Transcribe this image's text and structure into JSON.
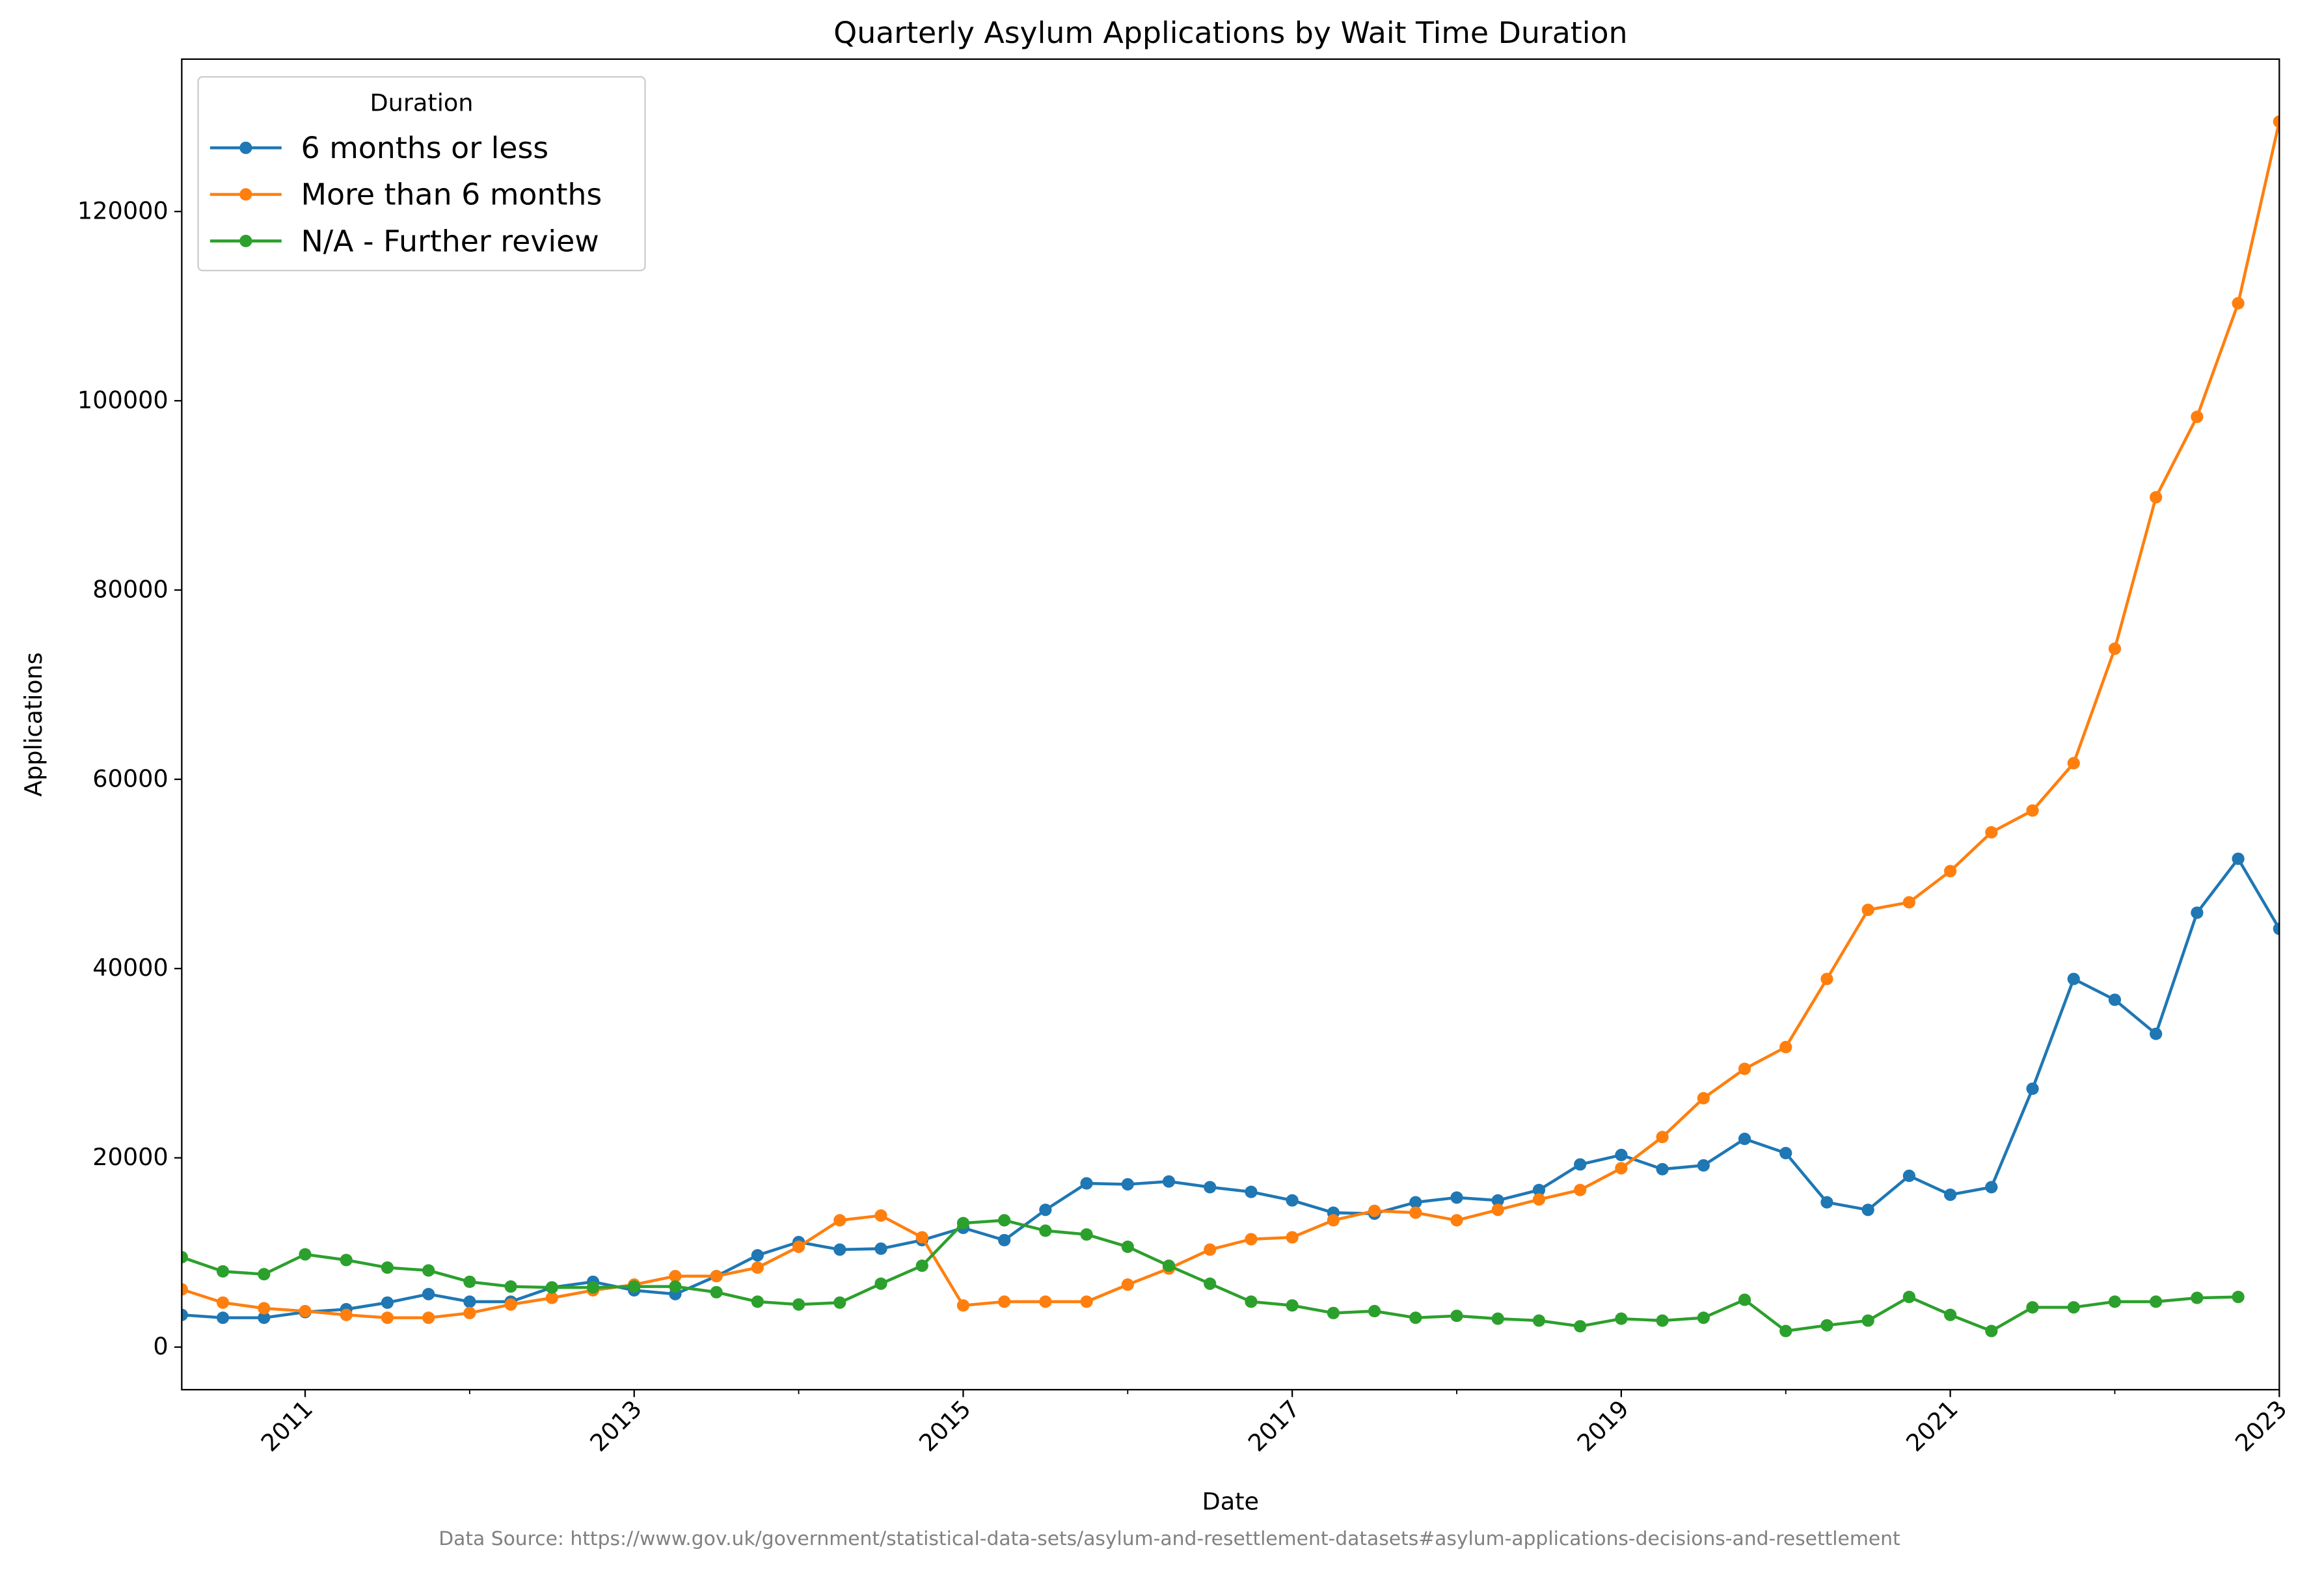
{
  "chart_data": {
    "type": "line",
    "title": "Quarterly Asylum Applications by Wait Time Duration",
    "xlabel": "Date",
    "ylabel": "Applications",
    "source": "Data Source: https://www.gov.uk/government/statistical-data-sets/asylum-and-resettlement-datasets#asylum-applications-decisions-and-resettlement",
    "legend_title": "Duration",
    "legend": "upper left",
    "x": [
      2010.25,
      2010.5,
      2010.75,
      2011,
      2011.25,
      2011.5,
      2011.75,
      2012,
      2012.25,
      2012.5,
      2012.75,
      2013,
      2013.25,
      2013.5,
      2013.75,
      2014,
      2014.25,
      2014.5,
      2014.75,
      2015,
      2015.25,
      2015.5,
      2015.75,
      2016,
      2016.25,
      2016.5,
      2016.75,
      2017,
      2017.25,
      2017.5,
      2017.75,
      2018,
      2018.25,
      2018.5,
      2018.75,
      2019,
      2019.25,
      2019.5,
      2019.75,
      2020,
      2020.25,
      2020.5,
      2020.75,
      2021,
      2021.25,
      2021.5,
      2021.75,
      2022,
      2022.25,
      2022.5,
      2022.75,
      2023
    ],
    "xlim": [
      2010.25,
      2023
    ],
    "xticks": [
      2011,
      2013,
      2015,
      2017,
      2019,
      2021,
      2023
    ],
    "xminorticks": [
      2012,
      2014,
      2016,
      2018,
      2020,
      2022
    ],
    "ylim": [
      -4500,
      136100
    ],
    "yticks": [
      0,
      20000,
      40000,
      60000,
      80000,
      100000,
      120000
    ],
    "series": [
      {
        "name": "6 months or less",
        "color": "#1f77b4",
        "values": [
          3400,
          3100,
          3100,
          3700,
          4000,
          4700,
          5600,
          4800,
          4800,
          6300,
          6900,
          6000,
          5600,
          7500,
          9700,
          11100,
          10300,
          10400,
          11300,
          12600,
          11300,
          14500,
          17300,
          17200,
          17500,
          16900,
          16400,
          15500,
          14200,
          14100,
          15300,
          15800,
          15500,
          16600,
          19300,
          20300,
          18800,
          19200,
          22000,
          20500,
          15300,
          14500,
          18100,
          16100,
          16900,
          27300,
          38900,
          36700,
          33100,
          45900,
          51600,
          44200
        ]
      },
      {
        "name": "More than 6 months",
        "color": "#ff7f0e",
        "values": [
          6100,
          4700,
          4100,
          3800,
          3400,
          3100,
          3100,
          3600,
          4500,
          5200,
          6000,
          6600,
          7500,
          7500,
          8400,
          10600,
          13400,
          13900,
          11600,
          4400,
          4800,
          4800,
          4800,
          6600,
          8300,
          10300,
          11400,
          11600,
          13400,
          14400,
          14200,
          13400,
          14500,
          15600,
          16600,
          18900,
          22200,
          26300,
          29400,
          31700,
          38900,
          46200,
          47000,
          50300,
          54400,
          56700,
          61700,
          73800,
          89800,
          98300,
          110300,
          129500
        ]
      },
      {
        "name": "N/A - Further review",
        "color": "#2ca02c",
        "values": [
          9500,
          8000,
          7700,
          9800,
          9200,
          8400,
          8100,
          6900,
          6400,
          6300,
          6300,
          6400,
          6400,
          5800,
          4800,
          4500,
          4700,
          6700,
          8600,
          13100,
          13400,
          12300,
          11900,
          10600,
          8600,
          6700,
          4800,
          4400,
          3600,
          3800,
          3100,
          3300,
          3000,
          2800,
          2200,
          3000,
          2800,
          3100,
          5000,
          1700,
          2300,
          2800,
          5300,
          3400,
          1700,
          4200,
          4200,
          4800,
          4800,
          5200,
          5300,
          null
        ]
      }
    ]
  }
}
